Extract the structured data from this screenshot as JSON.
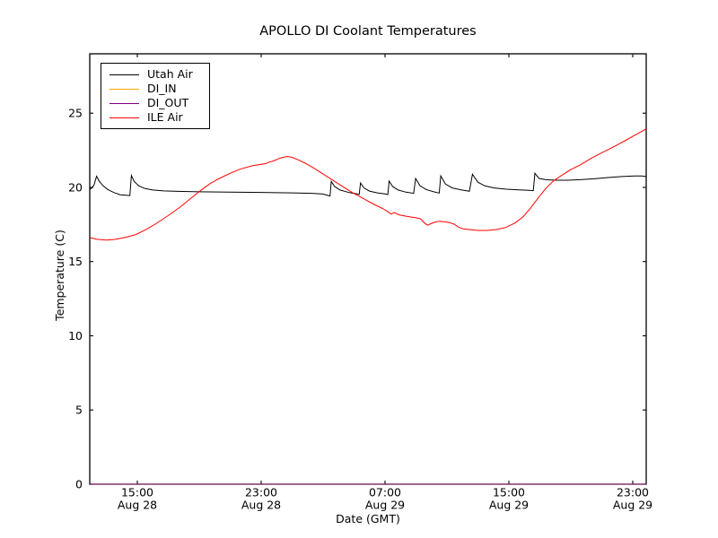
{
  "chart_data": {
    "type": "line",
    "title": "APOLLO DI Coolant Temperatures",
    "xlabel": "Date (GMT)",
    "ylabel": "Temperature (C)",
    "x_unit": "hours since Aug 28 00:00 GMT",
    "xlim": [
      11.93,
      47.87
    ],
    "ylim": [
      0,
      29
    ],
    "yticks": [
      0,
      5,
      10,
      15,
      20,
      25
    ],
    "xticks": [
      {
        "value": 15,
        "time": "15:00",
        "date": "Aug 28"
      },
      {
        "value": 23,
        "time": "23:00",
        "date": "Aug 28"
      },
      {
        "value": 31,
        "time": "07:00",
        "date": "Aug 29"
      },
      {
        "value": 39,
        "time": "15:00",
        "date": "Aug 29"
      },
      {
        "value": 47,
        "time": "23:00",
        "date": "Aug 29"
      }
    ],
    "grid": false,
    "legend_position": "upper-left",
    "series": [
      {
        "name": "Utah Air",
        "color": "#000000",
        "points": [
          [
            11.93,
            19.85
          ],
          [
            12.05,
            19.95
          ],
          [
            12.2,
            20.15
          ],
          [
            12.37,
            20.75
          ],
          [
            12.55,
            20.4
          ],
          [
            12.8,
            20.1
          ],
          [
            13.1,
            19.85
          ],
          [
            13.5,
            19.65
          ],
          [
            13.9,
            19.5
          ],
          [
            14.3,
            19.47
          ],
          [
            14.52,
            19.45
          ],
          [
            14.62,
            20.8
          ],
          [
            14.8,
            20.4
          ],
          [
            15.1,
            20.1
          ],
          [
            15.5,
            19.92
          ],
          [
            16.0,
            19.82
          ],
          [
            16.7,
            19.76
          ],
          [
            17.6,
            19.73
          ],
          [
            19.0,
            19.7
          ],
          [
            21.0,
            19.68
          ],
          [
            23.0,
            19.66
          ],
          [
            25.0,
            19.63
          ],
          [
            26.3,
            19.6
          ],
          [
            27.0,
            19.55
          ],
          [
            27.3,
            19.46
          ],
          [
            27.45,
            19.42
          ],
          [
            27.53,
            20.4
          ],
          [
            27.75,
            20.05
          ],
          [
            28.1,
            19.82
          ],
          [
            28.7,
            19.65
          ],
          [
            29.2,
            19.56
          ],
          [
            29.33,
            19.52
          ],
          [
            29.42,
            20.3
          ],
          [
            29.65,
            19.95
          ],
          [
            30.0,
            19.75
          ],
          [
            30.5,
            19.63
          ],
          [
            31.0,
            19.56
          ],
          [
            31.18,
            19.52
          ],
          [
            31.27,
            20.42
          ],
          [
            31.5,
            20.05
          ],
          [
            31.85,
            19.82
          ],
          [
            32.35,
            19.68
          ],
          [
            32.85,
            19.6
          ],
          [
            32.98,
            20.6
          ],
          [
            33.25,
            20.12
          ],
          [
            33.65,
            19.86
          ],
          [
            34.15,
            19.7
          ],
          [
            34.5,
            19.62
          ],
          [
            34.6,
            20.78
          ],
          [
            34.9,
            20.22
          ],
          [
            35.35,
            19.96
          ],
          [
            35.95,
            19.82
          ],
          [
            36.45,
            19.74
          ],
          [
            36.65,
            20.88
          ],
          [
            37.0,
            20.35
          ],
          [
            37.45,
            20.1
          ],
          [
            38.05,
            19.96
          ],
          [
            38.85,
            19.88
          ],
          [
            39.65,
            19.83
          ],
          [
            40.3,
            19.8
          ],
          [
            40.58,
            19.78
          ],
          [
            40.68,
            20.95
          ],
          [
            40.95,
            20.6
          ],
          [
            41.4,
            20.52
          ],
          [
            42.0,
            20.48
          ],
          [
            42.8,
            20.48
          ],
          [
            43.6,
            20.52
          ],
          [
            44.5,
            20.58
          ],
          [
            45.4,
            20.66
          ],
          [
            46.3,
            20.73
          ],
          [
            47.1,
            20.77
          ],
          [
            47.6,
            20.77
          ],
          [
            47.87,
            20.72
          ]
        ]
      },
      {
        "name": "DI_IN",
        "color": "#ffa500",
        "points": [
          [
            11.93,
            0
          ],
          [
            47.87,
            0
          ]
        ]
      },
      {
        "name": "DI_OUT",
        "color": "#800080",
        "points": [
          [
            11.93,
            0
          ],
          [
            47.87,
            0
          ]
        ]
      },
      {
        "name": "ILE Air",
        "color": "#ff0000",
        "points": [
          [
            11.93,
            16.62
          ],
          [
            12.4,
            16.5
          ],
          [
            13.0,
            16.45
          ],
          [
            13.6,
            16.5
          ],
          [
            14.2,
            16.62
          ],
          [
            14.9,
            16.82
          ],
          [
            15.5,
            17.12
          ],
          [
            16.2,
            17.55
          ],
          [
            17.0,
            18.1
          ],
          [
            17.8,
            18.7
          ],
          [
            18.5,
            19.3
          ],
          [
            19.1,
            19.8
          ],
          [
            19.7,
            20.25
          ],
          [
            20.3,
            20.6
          ],
          [
            21.0,
            20.95
          ],
          [
            21.7,
            21.25
          ],
          [
            22.4,
            21.45
          ],
          [
            23.0,
            21.55
          ],
          [
            23.3,
            21.6
          ],
          [
            23.5,
            21.7
          ],
          [
            23.8,
            21.78
          ],
          [
            24.1,
            21.92
          ],
          [
            24.4,
            22.02
          ],
          [
            24.7,
            22.08
          ],
          [
            25.0,
            22.02
          ],
          [
            25.4,
            21.85
          ],
          [
            25.9,
            21.6
          ],
          [
            26.4,
            21.3
          ],
          [
            27.0,
            20.9
          ],
          [
            27.6,
            20.5
          ],
          [
            28.2,
            20.1
          ],
          [
            28.9,
            19.65
          ],
          [
            29.6,
            19.25
          ],
          [
            30.3,
            18.85
          ],
          [
            30.9,
            18.55
          ],
          [
            31.2,
            18.35
          ],
          [
            31.4,
            18.2
          ],
          [
            31.6,
            18.3
          ],
          [
            31.9,
            18.15
          ],
          [
            32.4,
            18.05
          ],
          [
            33.0,
            17.95
          ],
          [
            33.3,
            17.88
          ],
          [
            33.55,
            17.6
          ],
          [
            33.75,
            17.45
          ],
          [
            33.95,
            17.55
          ],
          [
            34.2,
            17.65
          ],
          [
            34.5,
            17.72
          ],
          [
            34.9,
            17.67
          ],
          [
            35.2,
            17.62
          ],
          [
            35.5,
            17.5
          ],
          [
            35.75,
            17.32
          ],
          [
            36.05,
            17.2
          ],
          [
            36.5,
            17.15
          ],
          [
            37.0,
            17.1
          ],
          [
            37.6,
            17.1
          ],
          [
            38.2,
            17.16
          ],
          [
            38.8,
            17.3
          ],
          [
            39.4,
            17.6
          ],
          [
            39.9,
            18.0
          ],
          [
            40.4,
            18.6
          ],
          [
            40.9,
            19.3
          ],
          [
            41.4,
            19.95
          ],
          [
            41.9,
            20.45
          ],
          [
            42.4,
            20.8
          ],
          [
            43.0,
            21.2
          ],
          [
            43.6,
            21.5
          ],
          [
            44.3,
            21.95
          ],
          [
            45.1,
            22.38
          ],
          [
            45.9,
            22.8
          ],
          [
            46.6,
            23.2
          ],
          [
            47.2,
            23.55
          ],
          [
            47.6,
            23.78
          ],
          [
            47.87,
            23.95
          ]
        ]
      }
    ]
  }
}
